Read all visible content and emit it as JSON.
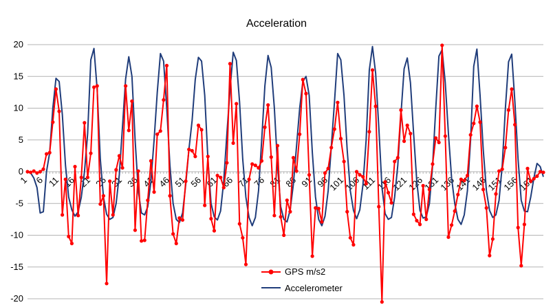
{
  "chart_data": {
    "type": "line",
    "title": "Acceleration",
    "xlabel": "",
    "ylabel": "",
    "ylim": [
      -20,
      20
    ],
    "ytick_step": 5,
    "x_start": 1,
    "x_end": 164,
    "x_tick_labels": [
      "1",
      "6",
      "11",
      "16",
      "21",
      "26",
      "31",
      "36",
      "41",
      "46",
      "51",
      "56",
      "61",
      "66",
      "71",
      "76",
      "81",
      "86",
      "91",
      "96",
      "101",
      "106",
      "111",
      "116",
      "121",
      "126",
      "131",
      "136",
      "141",
      "146",
      "151",
      "156",
      "161"
    ],
    "grid": {
      "horizontal": true,
      "vertical": false
    },
    "legend_position": "bottom-center",
    "series": [
      {
        "name": "GPS m/s2",
        "color": "#ff0000",
        "marker": "circle",
        "points": [
          [
            1,
            0
          ],
          [
            2,
            -0.1
          ],
          [
            3,
            0.1
          ],
          [
            4,
            -0.2
          ],
          [
            5,
            0
          ],
          [
            6,
            0.4
          ],
          [
            7,
            2.8
          ],
          [
            8,
            3
          ],
          [
            9,
            7.8
          ],
          [
            10,
            13
          ],
          [
            11,
            9.5
          ],
          [
            12,
            -6.8
          ],
          [
            13,
            -1.2
          ],
          [
            14,
            -10.2
          ],
          [
            15,
            -11.3
          ],
          [
            16,
            0.8
          ],
          [
            17,
            -6.9
          ],
          [
            18,
            -0.9
          ],
          [
            19,
            7.7
          ],
          [
            20,
            -0.9
          ],
          [
            21,
            2.9
          ],
          [
            22,
            13.3
          ],
          [
            23,
            13.5
          ],
          [
            24,
            -5.1
          ],
          [
            25,
            -3.8
          ],
          [
            26,
            -17.6
          ],
          [
            27,
            -1.5
          ],
          [
            28,
            -6.8
          ],
          [
            29,
            0.3
          ],
          [
            30,
            2.5
          ],
          [
            31,
            0.6
          ],
          [
            32,
            13.5
          ],
          [
            33,
            6.5
          ],
          [
            34,
            11.1
          ],
          [
            35,
            -9.2
          ],
          [
            36,
            0.1
          ],
          [
            37,
            -10.9
          ],
          [
            38,
            -10.8
          ],
          [
            39,
            -4.5
          ],
          [
            40,
            1.7
          ],
          [
            41,
            -3.2
          ],
          [
            42,
            5.9
          ],
          [
            43,
            6.4
          ],
          [
            44,
            11.3
          ],
          [
            45,
            16.7
          ],
          [
            46,
            -3.8
          ],
          [
            47,
            -9.8
          ],
          [
            48,
            -11.3
          ],
          [
            49,
            -7.3
          ],
          [
            50,
            -7.6
          ],
          [
            51,
            -1.5
          ],
          [
            52,
            3.5
          ],
          [
            53,
            3.3
          ],
          [
            54,
            2.4
          ],
          [
            55,
            7.3
          ],
          [
            56,
            6.6
          ],
          [
            57,
            -5.3
          ],
          [
            58,
            2.4
          ],
          [
            59,
            -7.4
          ],
          [
            60,
            -9.3
          ],
          [
            61,
            -0.6
          ],
          [
            62,
            -0.9
          ],
          [
            63,
            -2.5
          ],
          [
            64,
            1.4
          ],
          [
            65,
            17
          ],
          [
            66,
            4.5
          ],
          [
            67,
            10.7
          ],
          [
            68,
            -8.2
          ],
          [
            69,
            -10.4
          ],
          [
            70,
            -14.6
          ],
          [
            71,
            -1.2
          ],
          [
            72,
            1.2
          ],
          [
            73,
            1
          ],
          [
            74,
            0.6
          ],
          [
            75,
            1.7
          ],
          [
            76,
            7
          ],
          [
            77,
            10.5
          ],
          [
            78,
            2.3
          ],
          [
            79,
            -6.9
          ],
          [
            80,
            4.1
          ],
          [
            81,
            -7.1
          ],
          [
            82,
            -10
          ],
          [
            83,
            -4.5
          ],
          [
            84,
            -6.3
          ],
          [
            85,
            2.2
          ],
          [
            86,
            0.1
          ],
          [
            87,
            5.9
          ],
          [
            88,
            14.5
          ],
          [
            89,
            12.3
          ],
          [
            90,
            -0.5
          ],
          [
            91,
            -13.3
          ],
          [
            92,
            -5.7
          ],
          [
            93,
            -5.8
          ],
          [
            94,
            -7.9
          ],
          [
            95,
            -0.2
          ],
          [
            96,
            0.5
          ],
          [
            97,
            3.8
          ],
          [
            98,
            6.7
          ],
          [
            99,
            10.9
          ],
          [
            100,
            5.2
          ],
          [
            101,
            1.6
          ],
          [
            102,
            -6.3
          ],
          [
            103,
            -10.4
          ],
          [
            104,
            -11.5
          ],
          [
            105,
            0
          ],
          [
            106,
            -0.5
          ],
          [
            107,
            -0.8
          ],
          [
            108,
            -1.9
          ],
          [
            109,
            6.3
          ],
          [
            110,
            16
          ],
          [
            111,
            10.3
          ],
          [
            112,
            -5.5
          ],
          [
            113,
            -20.5
          ],
          [
            114,
            -1.6
          ],
          [
            115,
            -3.3
          ],
          [
            116,
            -4.9
          ],
          [
            117,
            1.6
          ],
          [
            118,
            2.2
          ],
          [
            119,
            9.7
          ],
          [
            120,
            4.8
          ],
          [
            121,
            7.3
          ],
          [
            122,
            6
          ],
          [
            123,
            -6.7
          ],
          [
            124,
            -7.7
          ],
          [
            125,
            -8.3
          ],
          [
            126,
            -2.2
          ],
          [
            127,
            -7.5
          ],
          [
            128,
            -2.8
          ],
          [
            129,
            1.2
          ],
          [
            130,
            5.3
          ],
          [
            131,
            4.6
          ],
          [
            132,
            19.9
          ],
          [
            133,
            5.6
          ],
          [
            134,
            -10.3
          ],
          [
            135,
            -8.4
          ],
          [
            136,
            -6.2
          ],
          [
            137,
            -3.6
          ],
          [
            138,
            -1.2
          ],
          [
            139,
            -1.4
          ],
          [
            140,
            -0.6
          ],
          [
            141,
            5.8
          ],
          [
            142,
            7.6
          ],
          [
            143,
            10.3
          ],
          [
            144,
            7.8
          ],
          [
            145,
            -2.8
          ],
          [
            146,
            -5.7
          ],
          [
            147,
            -13.2
          ],
          [
            148,
            -10.6
          ],
          [
            149,
            -3.5
          ],
          [
            150,
            0.1
          ],
          [
            151,
            0.4
          ],
          [
            152,
            3.8
          ],
          [
            153,
            9.7
          ],
          [
            154,
            13
          ],
          [
            155,
            7.4
          ],
          [
            156,
            -8.8
          ],
          [
            157,
            -14.8
          ],
          [
            158,
            -8.3
          ],
          [
            159,
            0.5
          ],
          [
            160,
            -1.5
          ],
          [
            161,
            -1.1
          ],
          [
            162,
            -0.7
          ],
          [
            163,
            0
          ],
          [
            164,
            -0.1
          ]
        ]
      },
      {
        "name": "Accelerometer",
        "color": "#1f3c7a",
        "marker": "none",
        "points": [
          [
            1,
            0
          ],
          [
            2,
            -0.2
          ],
          [
            3,
            -1
          ],
          [
            4,
            -2.5
          ],
          [
            5,
            -6.5
          ],
          [
            6,
            -6.3
          ],
          [
            7,
            0
          ],
          [
            8,
            3
          ],
          [
            9,
            10
          ],
          [
            10,
            14.7
          ],
          [
            11,
            14.2
          ],
          [
            12,
            9
          ],
          [
            13,
            1
          ],
          [
            14,
            -4
          ],
          [
            15,
            -6
          ],
          [
            16,
            -7
          ],
          [
            17,
            -6.3
          ],
          [
            18,
            -4
          ],
          [
            19,
            0
          ],
          [
            20,
            6
          ],
          [
            21,
            17.6
          ],
          [
            22,
            19.4
          ],
          [
            23,
            13
          ],
          [
            24,
            2
          ],
          [
            25,
            -4
          ],
          [
            26,
            -6.7
          ],
          [
            27,
            -7.5
          ],
          [
            28,
            -7.2
          ],
          [
            29,
            -5
          ],
          [
            30,
            -0.5
          ],
          [
            31,
            7
          ],
          [
            32,
            14.6
          ],
          [
            33,
            18.1
          ],
          [
            34,
            15
          ],
          [
            35,
            5
          ],
          [
            36,
            -3
          ],
          [
            37,
            -6.5
          ],
          [
            38,
            -6.8
          ],
          [
            39,
            -5.5
          ],
          [
            40,
            -1.5
          ],
          [
            41,
            5
          ],
          [
            42,
            12.5
          ],
          [
            43,
            18.6
          ],
          [
            44,
            17.4
          ],
          [
            45,
            10
          ],
          [
            46,
            1
          ],
          [
            47,
            -5
          ],
          [
            48,
            -7.5
          ],
          [
            49,
            -8
          ],
          [
            50,
            -6.5
          ],
          [
            51,
            -2
          ],
          [
            52,
            3.5
          ],
          [
            53,
            8
          ],
          [
            54,
            14.5
          ],
          [
            55,
            18
          ],
          [
            56,
            17.4
          ],
          [
            57,
            12
          ],
          [
            58,
            2
          ],
          [
            59,
            -5
          ],
          [
            60,
            -7.1
          ],
          [
            61,
            -7.6
          ],
          [
            62,
            -6.2
          ],
          [
            63,
            -1.5
          ],
          [
            64,
            6
          ],
          [
            65,
            13
          ],
          [
            66,
            18.8
          ],
          [
            67,
            17.5
          ],
          [
            68,
            11
          ],
          [
            69,
            2
          ],
          [
            70,
            -4
          ],
          [
            71,
            -7.2
          ],
          [
            72,
            -8.5
          ],
          [
            73,
            -7.2
          ],
          [
            74,
            -3
          ],
          [
            75,
            5
          ],
          [
            76,
            13.5
          ],
          [
            77,
            18.3
          ],
          [
            78,
            16.4
          ],
          [
            79,
            10
          ],
          [
            80,
            1
          ],
          [
            81,
            -5.5
          ],
          [
            82,
            -7.5
          ],
          [
            83,
            -7.9
          ],
          [
            84,
            -6
          ],
          [
            85,
            -2
          ],
          [
            86,
            4
          ],
          [
            87,
            10
          ],
          [
            88,
            14.2
          ],
          [
            89,
            15
          ],
          [
            90,
            12
          ],
          [
            91,
            3
          ],
          [
            92,
            -4
          ],
          [
            93,
            -7.5
          ],
          [
            94,
            -8.5
          ],
          [
            95,
            -7
          ],
          [
            96,
            -3
          ],
          [
            97,
            4
          ],
          [
            98,
            11
          ],
          [
            99,
            18.6
          ],
          [
            100,
            17.6
          ],
          [
            101,
            12
          ],
          [
            102,
            3.5
          ],
          [
            103,
            -3
          ],
          [
            104,
            -6.1
          ],
          [
            105,
            -7.4
          ],
          [
            106,
            -6
          ],
          [
            107,
            -2
          ],
          [
            108,
            5
          ],
          [
            109,
            16
          ],
          [
            110,
            19.7
          ],
          [
            111,
            15.5
          ],
          [
            112,
            7
          ],
          [
            113,
            -2.5
          ],
          [
            114,
            -6.6
          ],
          [
            115,
            -7.5
          ],
          [
            116,
            -7.2
          ],
          [
            117,
            -4
          ],
          [
            118,
            1
          ],
          [
            119,
            9
          ],
          [
            120,
            16.2
          ],
          [
            121,
            17.9
          ],
          [
            122,
            14
          ],
          [
            123,
            6
          ],
          [
            124,
            -1.5
          ],
          [
            125,
            -6.1
          ],
          [
            126,
            -7.3
          ],
          [
            127,
            -7.1
          ],
          [
            128,
            -5
          ],
          [
            129,
            1
          ],
          [
            130,
            10
          ],
          [
            131,
            18.2
          ],
          [
            132,
            19.2
          ],
          [
            133,
            14
          ],
          [
            134,
            6
          ],
          [
            135,
            -1
          ],
          [
            136,
            -5
          ],
          [
            137,
            -7.5
          ],
          [
            138,
            -8.3
          ],
          [
            139,
            -6.8
          ],
          [
            140,
            -3
          ],
          [
            141,
            5
          ],
          [
            142,
            16.6
          ],
          [
            143,
            19.3
          ],
          [
            144,
            12
          ],
          [
            145,
            3.5
          ],
          [
            146,
            -3
          ],
          [
            147,
            -6.1
          ],
          [
            148,
            -7.2
          ],
          [
            149,
            -6.8
          ],
          [
            150,
            -4.5
          ],
          [
            151,
            1
          ],
          [
            152,
            10
          ],
          [
            153,
            17.3
          ],
          [
            154,
            18.5
          ],
          [
            155,
            11
          ],
          [
            156,
            2
          ],
          [
            157,
            -4.5
          ],
          [
            158,
            -6.2
          ],
          [
            159,
            -6.3
          ],
          [
            160,
            -4
          ],
          [
            161,
            -1
          ],
          [
            162,
            1.3
          ],
          [
            163,
            0.8
          ],
          [
            164,
            -0.8
          ]
        ]
      }
    ]
  }
}
